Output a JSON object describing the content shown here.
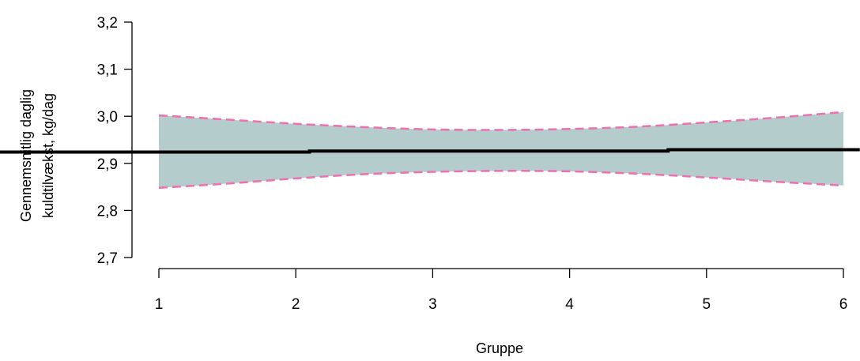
{
  "chart_data": {
    "type": "area",
    "xlabel": "Gruppe",
    "ylabel_lines": [
      "Gennemsnitlig  daglig",
      "kuldtilvækst, kg/dag"
    ],
    "xlim": [
      1,
      6
    ],
    "ylim": [
      2.7,
      3.2
    ],
    "x_ticks": [
      1,
      2,
      3,
      4,
      5,
      6
    ],
    "x_tick_labels": [
      "1",
      "2",
      "3",
      "4",
      "5",
      "6"
    ],
    "y_ticks": [
      2.7,
      2.8,
      2.9,
      3.0,
      3.1,
      3.2
    ],
    "y_tick_labels": [
      "2,7",
      "2,8",
      "2,9",
      "3,0",
      "3,1",
      "3,2"
    ],
    "grid": false,
    "legend": "none",
    "band": {
      "x": [
        1,
        1.5,
        2,
        2.5,
        3,
        3.5,
        4,
        4.5,
        5,
        5.5,
        6
      ],
      "upper": [
        3.002,
        2.993,
        2.984,
        2.977,
        2.972,
        2.971,
        2.973,
        2.978,
        2.987,
        2.997,
        3.009
      ],
      "lower": [
        2.848,
        2.857,
        2.868,
        2.877,
        2.882,
        2.884,
        2.883,
        2.878,
        2.87,
        2.861,
        2.853
      ]
    },
    "mean_line": {
      "x": [
        1,
        2.1,
        2.1,
        4.72,
        4.72,
        6.12
      ],
      "y": [
        2.924,
        2.924,
        2.926,
        2.926,
        2.929,
        2.929
      ]
    },
    "colors": {
      "band_fill": "#b5cccc",
      "band_border": "#ee6fb2",
      "mean_line": "#000000",
      "axis": "#000000"
    }
  }
}
